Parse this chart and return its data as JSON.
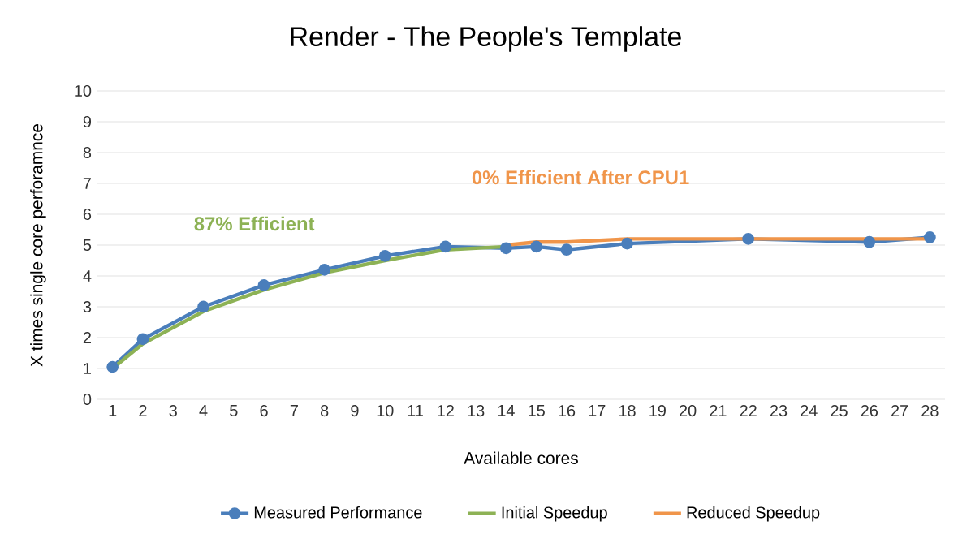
{
  "chart_data": {
    "type": "line",
    "title": "Render - The People's Template",
    "xlabel": "Available cores",
    "ylabel": "X times single core perforamnce",
    "xlim": [
      0.5,
      28.5
    ],
    "xticks": [
      1,
      2,
      3,
      4,
      5,
      6,
      7,
      8,
      9,
      10,
      11,
      12,
      13,
      14,
      15,
      16,
      17,
      18,
      19,
      20,
      21,
      22,
      23,
      24,
      25,
      26,
      27,
      28
    ],
    "ylim": [
      0,
      10
    ],
    "yticks": [
      0,
      1,
      2,
      3,
      4,
      5,
      6,
      7,
      8,
      9,
      10
    ],
    "grid": "y",
    "legend": "bottom",
    "series": [
      {
        "name": "Measured Performance",
        "color": "#4a7ebb",
        "marker": "circle",
        "x": [
          1,
          2,
          4,
          6,
          8,
          10,
          12,
          14,
          15,
          16,
          18,
          22,
          26,
          28
        ],
        "values": [
          1.05,
          1.95,
          3.0,
          3.7,
          4.2,
          4.65,
          4.95,
          4.9,
          4.95,
          4.85,
          5.05,
          5.2,
          5.1,
          5.25
        ]
      },
      {
        "name": "Initial Speedup",
        "color": "#8db255",
        "marker": "none",
        "x": [
          1,
          2,
          4,
          6,
          8,
          10,
          12,
          14
        ],
        "values": [
          1.0,
          1.8,
          2.85,
          3.55,
          4.1,
          4.5,
          4.85,
          4.95
        ]
      },
      {
        "name": "Reduced Speedup",
        "color": "#f0954a",
        "marker": "none",
        "x": [
          14,
          15,
          16,
          18,
          22,
          26,
          28
        ],
        "values": [
          5.0,
          5.1,
          5.1,
          5.2,
          5.2,
          5.2,
          5.2
        ]
      }
    ],
    "annotations": [
      "87% Efficient",
      "0% Efficient After CPU1"
    ]
  }
}
